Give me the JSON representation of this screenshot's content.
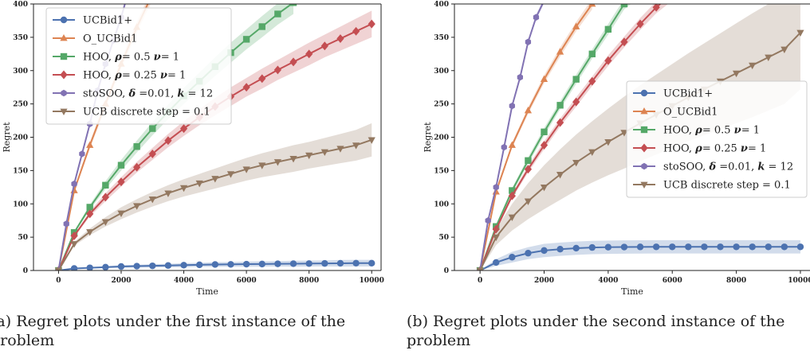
{
  "captions": {
    "a_line1": "(a) Regret plots under the first instance of the",
    "a_line2": "problem",
    "b_line1": "(b) Regret plots under the second instance of the",
    "b_line2": "problem"
  },
  "colors": {
    "UCBid1+": "#4c72b0",
    "O_UCBid1": "#dd8452",
    "HOO_05": "#55a868",
    "HOO_025": "#c44e52",
    "stoSOO": "#8172b3",
    "UCB_discrete": "#937860"
  },
  "chart_data": [
    {
      "type": "line",
      "xlabel": "Time",
      "ylabel": "Regret",
      "xlim": [
        -800,
        10300
      ],
      "ylim": [
        0,
        400
      ],
      "xticks": [
        0,
        2000,
        4000,
        6000,
        8000,
        10000
      ],
      "yticks": [
        0,
        50,
        100,
        150,
        200,
        250,
        300,
        350,
        400
      ],
      "grid": false,
      "legend_position": "top-left",
      "series": [
        {
          "key": "UCBid1+",
          "name": "UCBid1+",
          "marker": "circle",
          "x": [
            0,
            500,
            1000,
            1500,
            2000,
            2500,
            3000,
            3500,
            4000,
            4500,
            5000,
            5500,
            6000,
            6500,
            7000,
            7500,
            8000,
            8500,
            9000,
            9500,
            10000
          ],
          "y": [
            0,
            3,
            4,
            5,
            6,
            6.5,
            7,
            7.5,
            8,
            8.5,
            9,
            9.2,
            9.5,
            9.7,
            10,
            10.2,
            10.4,
            10.6,
            10.8,
            11,
            11
          ],
          "band": [
            0,
            0.5,
            1,
            1.5,
            2,
            2,
            2.5,
            2.5,
            3,
            3,
            3.5,
            3.5,
            4,
            4,
            4,
            4.5,
            4.5,
            4.5,
            5,
            5,
            5
          ]
        },
        {
          "key": "O_UCBid1",
          "name": "O_UCBid1",
          "marker": "triangle-up",
          "x": [
            0,
            500,
            1000,
            1500,
            2000,
            2500,
            3000
          ],
          "y": [
            0,
            120,
            188,
            250,
            310,
            365,
            415
          ],
          "band": [
            0,
            3,
            5,
            6,
            7,
            8,
            9
          ]
        },
        {
          "key": "HOO_05",
          "name": "HOO, ρ= 0.5 ν= 1",
          "marker": "square",
          "x": [
            0,
            500,
            1000,
            1500,
            2000,
            2500,
            3000,
            3500,
            4000,
            4500,
            5000,
            5500,
            6000,
            6500,
            7000,
            7500
          ],
          "y": [
            0,
            57,
            95,
            128,
            158,
            186,
            213,
            238,
            262,
            284,
            306,
            327,
            347,
            366,
            385,
            402
          ],
          "band": [
            0,
            2,
            4,
            6,
            8,
            9,
            10,
            11,
            12,
            13,
            14,
            15,
            15,
            16,
            16,
            17
          ]
        },
        {
          "key": "HOO_025",
          "name": "HOO, ρ= 0.25 ν= 1",
          "marker": "diamond",
          "x": [
            0,
            500,
            1000,
            1500,
            2000,
            2500,
            3000,
            3500,
            4000,
            4500,
            5000,
            5500,
            6000,
            6500,
            7000,
            7500,
            8000,
            8500,
            9000,
            9500,
            10000
          ],
          "y": [
            0,
            52,
            85,
            110,
            133,
            155,
            175,
            195,
            213,
            230,
            246,
            261,
            275,
            288,
            301,
            313,
            325,
            337,
            348,
            359,
            370
          ],
          "band": [
            0,
            2,
            4,
            6,
            7,
            8,
            9,
            10,
            11,
            12,
            13,
            14,
            14,
            15,
            15,
            16,
            17,
            17,
            18,
            19,
            20
          ]
        },
        {
          "key": "stoSOO",
          "name": "stoSOO, δ =0.01, k = 12",
          "marker": "hexagon",
          "x": [
            0,
            250,
            500,
            750,
            1000,
            1250,
            1500,
            1750,
            2000,
            2150
          ],
          "y": [
            0,
            70,
            130,
            175,
            220,
            270,
            310,
            345,
            380,
            405
          ],
          "band": [
            0,
            1,
            2,
            2,
            3,
            3,
            3,
            3,
            4,
            4
          ]
        },
        {
          "key": "UCB_discrete",
          "name": "UCB discrete step = 0.1",
          "marker": "triangle-down",
          "x": [
            0,
            500,
            1000,
            1500,
            2000,
            2500,
            3000,
            3500,
            4000,
            4500,
            5000,
            5500,
            6000,
            6500,
            7000,
            7500,
            8000,
            8500,
            9000,
            9500,
            10000
          ],
          "y": [
            0,
            40,
            58,
            73,
            86,
            97,
            107,
            116,
            124,
            131,
            138,
            145,
            152,
            158,
            163,
            168,
            173,
            178,
            183,
            188,
            196
          ],
          "band": [
            0,
            3,
            5,
            7,
            9,
            10,
            11,
            12,
            13,
            14,
            15,
            16,
            17,
            18,
            19,
            20,
            20,
            21,
            22,
            23,
            25
          ]
        }
      ]
    },
    {
      "type": "line",
      "xlabel": "Time",
      "ylabel": "Regret",
      "xlim": [
        -800,
        10300
      ],
      "ylim": [
        0,
        400
      ],
      "xticks": [
        0,
        2000,
        4000,
        6000,
        8000,
        10000
      ],
      "yticks": [
        0,
        50,
        100,
        150,
        200,
        250,
        300,
        350,
        400
      ],
      "grid": false,
      "legend_position": "center-right",
      "series": [
        {
          "key": "UCBid1+",
          "name": "UCBid1+",
          "marker": "circle",
          "x": [
            0,
            500,
            1000,
            1500,
            2000,
            2500,
            3000,
            3500,
            4000,
            4500,
            5000,
            5500,
            6000,
            6500,
            7000,
            7500,
            8000,
            8500,
            9000,
            9500,
            10000
          ],
          "y": [
            0,
            12,
            20,
            26,
            30,
            32,
            33.5,
            34.5,
            35,
            35.2,
            35.4,
            35.5,
            35.5,
            35.5,
            35.5,
            35.5,
            35.5,
            35.5,
            35.5,
            35.5,
            35.5
          ],
          "band": [
            0,
            5,
            8,
            9,
            10,
            10,
            10,
            10,
            10,
            10,
            10,
            10,
            10,
            10,
            10,
            10,
            10,
            10,
            10,
            10,
            10
          ]
        },
        {
          "key": "O_UCBid1",
          "name": "O_UCBid1",
          "marker": "triangle-up",
          "x": [
            0,
            500,
            1000,
            1500,
            2000,
            2500,
            3000,
            3500
          ],
          "y": [
            0,
            118,
            188,
            240,
            287,
            328,
            366,
            400
          ],
          "band": [
            0,
            3,
            4,
            5,
            6,
            7,
            7,
            8
          ]
        },
        {
          "key": "HOO_05",
          "name": "HOO, ρ= 0.5 ν= 1",
          "marker": "square",
          "x": [
            0,
            500,
            1000,
            1500,
            2000,
            2500,
            3000,
            3500,
            4000,
            4500,
            5000
          ],
          "y": [
            0,
            66,
            120,
            165,
            208,
            248,
            287,
            325,
            362,
            400,
            420
          ],
          "band": [
            0,
            3,
            4,
            5,
            6,
            6,
            7,
            7,
            8,
            8,
            9
          ]
        },
        {
          "key": "HOO_025",
          "name": "HOO, ρ= 0.25 ν= 1",
          "marker": "diamond",
          "x": [
            0,
            500,
            1000,
            1500,
            2000,
            2500,
            3000,
            3500,
            4000,
            4500,
            5000,
            5500,
            6000
          ],
          "y": [
            0,
            62,
            112,
            152,
            188,
            222,
            253,
            284,
            315,
            343,
            370,
            395,
            415
          ],
          "band": [
            0,
            3,
            4,
            5,
            6,
            6,
            7,
            7,
            8,
            8,
            9,
            9,
            10
          ]
        },
        {
          "key": "stoSOO",
          "name": "stoSOO, δ =0.01, k = 12",
          "marker": "hexagon",
          "x": [
            0,
            250,
            500,
            750,
            1000,
            1250,
            1500,
            1750,
            2000
          ],
          "y": [
            0,
            75,
            125,
            185,
            247,
            290,
            343,
            380,
            405
          ],
          "band": [
            0,
            2,
            2,
            3,
            3,
            3,
            3,
            4,
            4
          ]
        },
        {
          "key": "UCB_discrete",
          "name": "UCB discrete step = 0.1",
          "marker": "triangle-down",
          "x": [
            0,
            500,
            1000,
            1500,
            2000,
            2500,
            3000,
            3500,
            4000,
            4500,
            5000,
            5500,
            6000,
            6500,
            7000,
            7500,
            8000,
            8500,
            9000,
            9500,
            10000
          ],
          "y": [
            0,
            50,
            80,
            104,
            125,
            144,
            162,
            178,
            193,
            207,
            221,
            234,
            247,
            260,
            272,
            284,
            296,
            308,
            320,
            332,
            357
          ],
          "band": [
            0,
            12,
            20,
            27,
            33,
            38,
            42,
            46,
            50,
            54,
            57,
            60,
            63,
            66,
            69,
            72,
            75,
            78,
            80,
            82,
            85
          ]
        }
      ]
    }
  ]
}
